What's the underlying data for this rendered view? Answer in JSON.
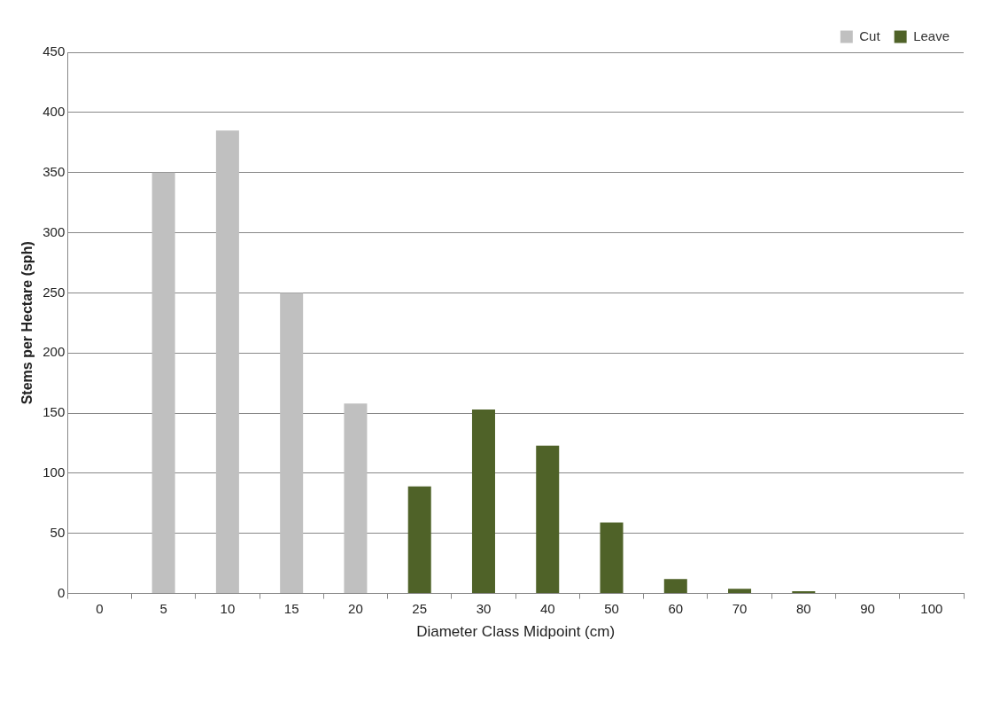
{
  "chart_data": {
    "type": "bar",
    "stacked": true,
    "xlabel": "Diameter Class Midpoint (cm)",
    "ylabel": "Stems per Hectare (sph)",
    "categories": [
      "0",
      "5",
      "10",
      "15",
      "20",
      "25",
      "30",
      "40",
      "50",
      "60",
      "70",
      "80",
      "90",
      "100"
    ],
    "series": [
      {
        "name": "Cut",
        "color": "#c0c0c0",
        "values": [
          null,
          350,
          385,
          250,
          158,
          null,
          null,
          null,
          null,
          null,
          null,
          null,
          null,
          null
        ]
      },
      {
        "name": "Leave",
        "color": "#4f6228",
        "values": [
          null,
          null,
          null,
          null,
          null,
          89,
          153,
          123,
          59,
          12,
          4,
          2,
          null,
          null
        ]
      }
    ],
    "ylim": [
      0,
      450
    ],
    "yticks": [
      0,
      50,
      100,
      150,
      200,
      250,
      300,
      350,
      400,
      450
    ],
    "grid": "y",
    "legend": "top right"
  }
}
